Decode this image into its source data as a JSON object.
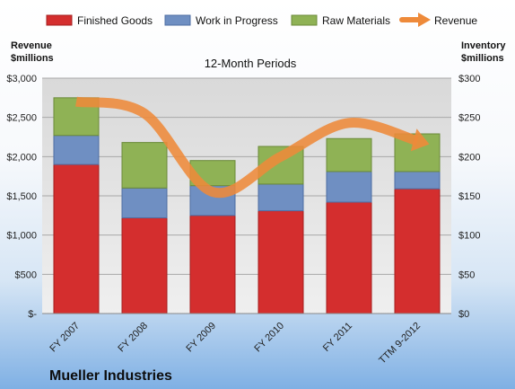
{
  "chart_data": {
    "type": "bar",
    "stacked": true,
    "title": "12-Month Periods",
    "company": "Mueller Industries",
    "categories": [
      "FY 2007",
      "FY 2008",
      "FY 2009",
      "FY 2010",
      "FY 2011",
      "TTM 9-2012"
    ],
    "series": [
      {
        "name": "Finished Goods",
        "values": [
          190,
          122,
          125,
          131,
          142,
          159
        ],
        "color": "#d42e2e",
        "axis": "right"
      },
      {
        "name": "Work in Progress",
        "values": [
          37,
          38,
          38,
          34,
          39,
          22
        ],
        "color": "#6f8fc2",
        "axis": "right"
      },
      {
        "name": "Raw Materials",
        "values": [
          48,
          58,
          32,
          48,
          42,
          48
        ],
        "color": "#8fb255",
        "axis": "right"
      },
      {
        "name": "Revenue",
        "type": "line",
        "values": [
          2700,
          2550,
          1550,
          2000,
          2430,
          2200
        ],
        "color": "#ee8a3a",
        "axis": "left"
      }
    ],
    "left_axis": {
      "label": [
        "Revenue",
        "$millions"
      ],
      "min": 0,
      "max": 3000,
      "step": 500,
      "ticks": [
        "$-",
        "$500",
        "$1,000",
        "$1,500",
        "$2,000",
        "$2,500",
        "$3,000"
      ]
    },
    "right_axis": {
      "label": [
        "Inventory",
        "$millions"
      ],
      "min": 0,
      "max": 300,
      "step": 50,
      "ticks": [
        "$0",
        "$50",
        "$100",
        "$150",
        "$200",
        "$250",
        "$300"
      ]
    },
    "grid": true,
    "legend": "top"
  }
}
